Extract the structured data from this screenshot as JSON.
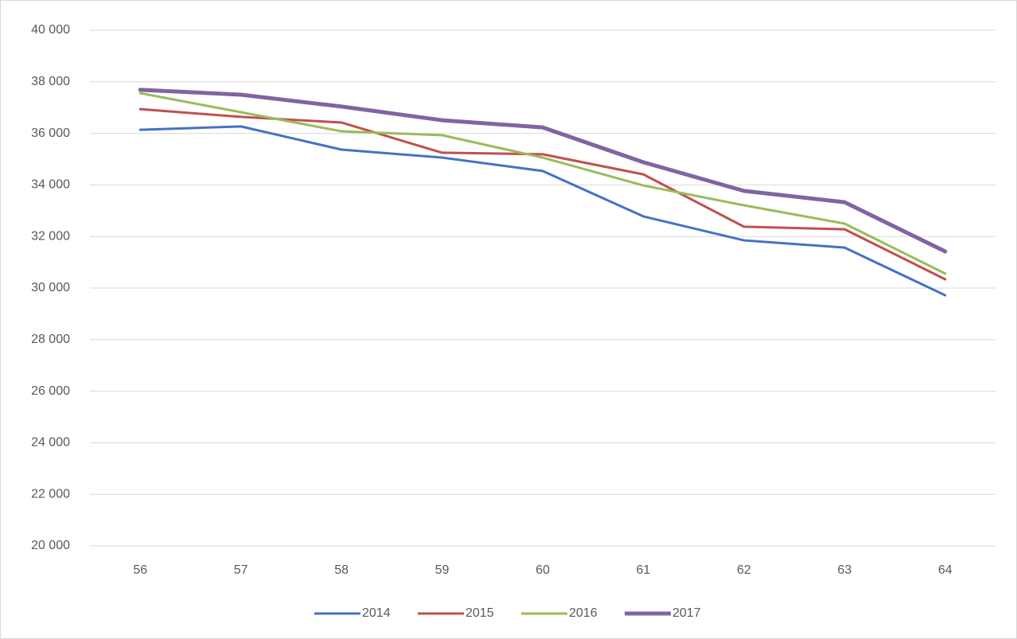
{
  "chart_data": {
    "type": "line",
    "categories": [
      "56",
      "57",
      "58",
      "59",
      "60",
      "61",
      "62",
      "63",
      "64"
    ],
    "series": [
      {
        "name": "2014",
        "color": "#4472c4",
        "line_width": 3,
        "values": [
          36140,
          36270,
          35370,
          35060,
          34540,
          32780,
          31850,
          31570,
          29720
        ]
      },
      {
        "name": "2015",
        "color": "#c0504d",
        "line_width": 3,
        "values": [
          36940,
          36640,
          36420,
          35250,
          35190,
          34410,
          32380,
          32280,
          30340
        ]
      },
      {
        "name": "2016",
        "color": "#9bbb59",
        "line_width": 3,
        "values": [
          37560,
          36820,
          36080,
          35930,
          35060,
          33980,
          33210,
          32500,
          30560
        ]
      },
      {
        "name": "2017",
        "color": "#8064a2",
        "line_width": 5,
        "values": [
          37690,
          37500,
          37040,
          36510,
          36230,
          34880,
          33770,
          33330,
          31420
        ]
      }
    ],
    "ylim": [
      20000,
      40000
    ],
    "yticks": [
      {
        "value": 20000,
        "label": "20 000"
      },
      {
        "value": 22000,
        "label": "22 000"
      },
      {
        "value": 24000,
        "label": "24 000"
      },
      {
        "value": 26000,
        "label": "26 000"
      },
      {
        "value": 28000,
        "label": "28 000"
      },
      {
        "value": 30000,
        "label": "30 000"
      },
      {
        "value": 32000,
        "label": "32 000"
      },
      {
        "value": 34000,
        "label": "34 000"
      },
      {
        "value": 36000,
        "label": "36 000"
      },
      {
        "value": 38000,
        "label": "38 000"
      },
      {
        "value": 40000,
        "label": "40 000"
      }
    ],
    "grid": true,
    "legend": "bottom"
  }
}
